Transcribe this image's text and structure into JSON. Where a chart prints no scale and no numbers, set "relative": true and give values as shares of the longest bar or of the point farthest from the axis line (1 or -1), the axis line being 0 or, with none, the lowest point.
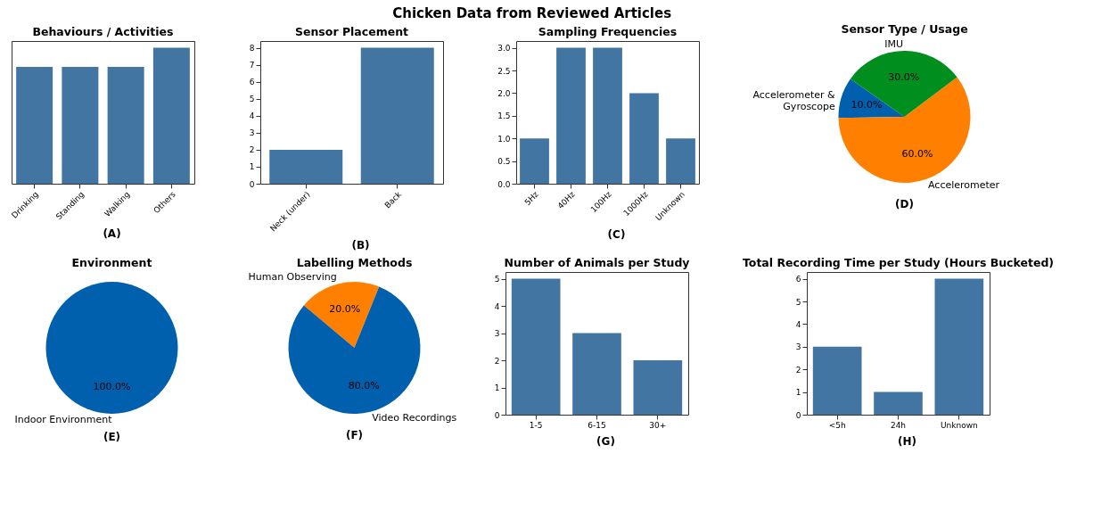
{
  "chart_data": [
    {
      "type": "other",
      "title": "Chicken Data from Reviewed Articles"
    },
    {
      "type": "bar",
      "title": "Behaviours / Activities",
      "categories": [
        "Drinking",
        "Standing",
        "Walking",
        "Others"
      ],
      "values": [
        0.86,
        0.86,
        0.86,
        1
      ],
      "relative": true,
      "color": "#4375a3",
      "tick_labels": "x",
      "annotations": [
        "(A)"
      ]
    },
    {
      "type": "bar",
      "title": "Sensor Placement",
      "categories": [
        "Neck (under)",
        "Back"
      ],
      "values": [
        2,
        8
      ],
      "color": "#4375a3",
      "ylim": [
        0,
        8.4
      ],
      "yticks": [
        0,
        1,
        2,
        3,
        4,
        5,
        6,
        7,
        8
      ],
      "annotations": [
        "(B)"
      ]
    },
    {
      "type": "bar",
      "title": "Sampling Frequencies",
      "categories": [
        "5Hz",
        "40Hz",
        "100Hz",
        "1000Hz",
        "Unknown"
      ],
      "values": [
        1,
        3,
        3,
        2,
        1
      ],
      "color": "#4375a3",
      "ylim": [
        0,
        3.15
      ],
      "yticks": [
        {
          "value": 0,
          "label": "0.0"
        },
        {
          "value": 0.5,
          "label": "0.5"
        },
        {
          "value": 1,
          "label": "1.0"
        },
        {
          "value": 1.5,
          "label": "1.5"
        },
        {
          "value": 2,
          "label": "2.0"
        },
        {
          "value": 2.5,
          "label": "2.5"
        },
        {
          "value": 3,
          "label": "3.0"
        }
      ],
      "annotations": [
        "(C)"
      ]
    },
    {
      "type": "pie",
      "title": "Sensor Type / Usage",
      "categories": [
        "Accelerometer & Gyroscope",
        "Accelerometer",
        "IMU"
      ],
      "values": [
        10,
        60,
        30
      ],
      "colors": [
        "#0060ad",
        "#ff7f00",
        "#008f1e"
      ],
      "value_labels": [
        "10.0%",
        "60.0%",
        "30.0%"
      ],
      "annotations": [
        "(D)"
      ]
    },
    {
      "type": "pie",
      "title": "Environment",
      "categories": [
        "Indoor Environment"
      ],
      "values": [
        100
      ],
      "colors": [
        "#0060ad"
      ],
      "value_labels": [
        "100.0%"
      ],
      "annotations": [
        "(E)"
      ]
    },
    {
      "type": "pie",
      "title": "Labelling Methods",
      "categories": [
        "Human Observing",
        "Video Recordings"
      ],
      "values": [
        20,
        80
      ],
      "colors": [
        "#ff7f00",
        "#0060ad"
      ],
      "value_labels": [
        "20.0%",
        "80.0%"
      ],
      "annotations": [
        "(F)"
      ]
    },
    {
      "type": "bar",
      "title": "Number of Animals per Study",
      "categories": [
        "1-5",
        "6-15",
        "30+"
      ],
      "values": [
        5,
        3,
        2
      ],
      "color": "#4375a3",
      "ylim": [
        0,
        5.25
      ],
      "yticks": [
        0,
        1,
        2,
        3,
        4,
        5
      ],
      "annotations": [
        "(G)"
      ]
    },
    {
      "type": "bar",
      "title": "Total Recording Time per Study (Hours Bucketed)",
      "categories": [
        "<5h",
        "24h",
        "Unknown"
      ],
      "values": [
        3,
        1,
        6
      ],
      "color": "#4375a3",
      "ylim": [
        0,
        6.3
      ],
      "yticks": [
        0,
        1,
        2,
        3,
        4,
        5,
        6
      ],
      "annotations": [
        "(H)"
      ]
    }
  ]
}
